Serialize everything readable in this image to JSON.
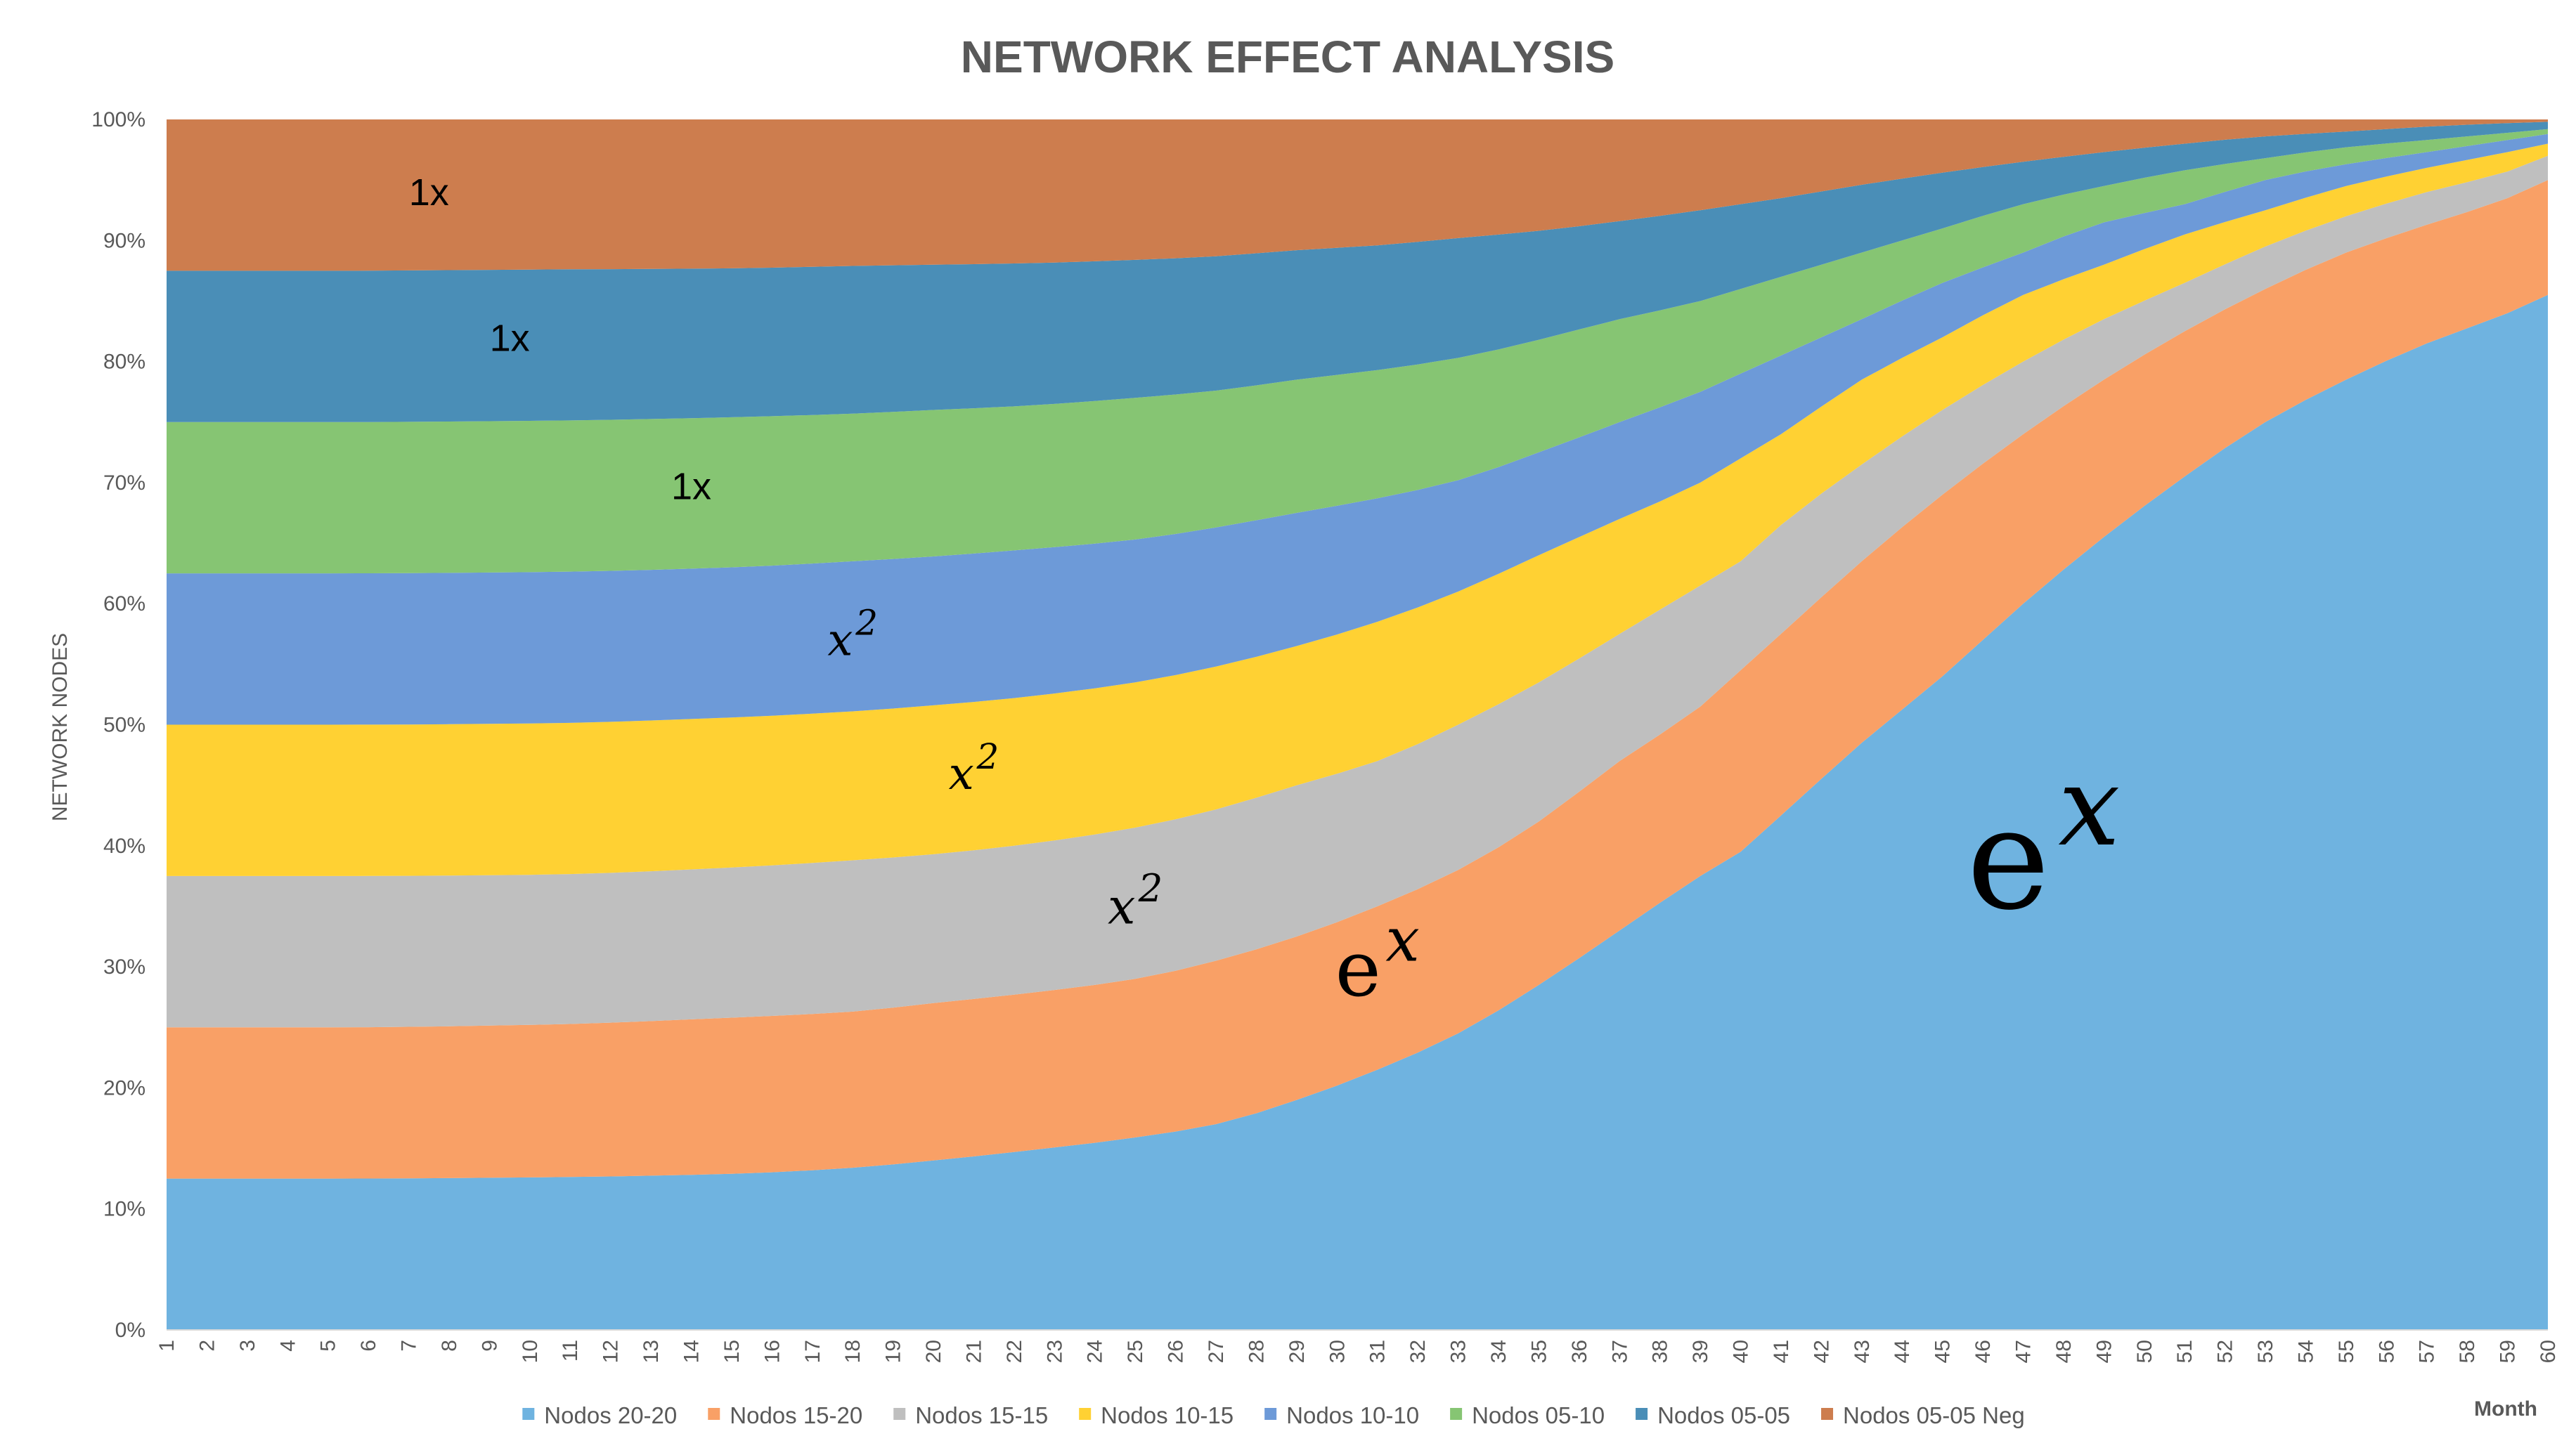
{
  "chart_data": {
    "type": "area",
    "stacked": "percent",
    "title": "NETWORK EFFECT ANALYSIS",
    "xlabel": "Month",
    "ylabel": "NETWORK NODES",
    "ylim": [
      0,
      100
    ],
    "y_ticks": [
      "0%",
      "10%",
      "20%",
      "30%",
      "40%",
      "50%",
      "60%",
      "70%",
      "80%",
      "90%",
      "100%"
    ],
    "x": [
      1,
      2,
      3,
      4,
      5,
      6,
      7,
      8,
      9,
      10,
      11,
      12,
      13,
      14,
      15,
      16,
      17,
      18,
      19,
      20,
      21,
      22,
      23,
      24,
      25,
      26,
      27,
      28,
      29,
      30,
      31,
      32,
      33,
      34,
      35,
      36,
      37,
      38,
      39,
      40,
      41,
      42,
      43,
      44,
      45,
      46,
      47,
      48,
      49,
      50,
      51,
      52,
      53,
      54,
      55,
      56,
      57,
      58,
      59,
      60
    ],
    "legend_position": "bottom",
    "cumulative_top_boundaries": [
      {
        "name": "Nodos 20-20",
        "color": "#6fb3e0",
        "points": [
          [
            1,
            12.5
          ],
          [
            5,
            12.5
          ],
          [
            10,
            12.6
          ],
          [
            15,
            12.9
          ],
          [
            18,
            13.4
          ],
          [
            20,
            14.0
          ],
          [
            22,
            14.7
          ],
          [
            25,
            15.9
          ],
          [
            27,
            17.0
          ],
          [
            29,
            19.0
          ],
          [
            31,
            21.5
          ],
          [
            33,
            24.5
          ],
          [
            35,
            28.5
          ],
          [
            37,
            33.0
          ],
          [
            39,
            37.5
          ],
          [
            40,
            39.5
          ],
          [
            41,
            42.5
          ],
          [
            43,
            48.5
          ],
          [
            45,
            54.0
          ],
          [
            47,
            60.0
          ],
          [
            49,
            65.5
          ],
          [
            51,
            70.5
          ],
          [
            53,
            75.0
          ],
          [
            55,
            78.5
          ],
          [
            57,
            81.5
          ],
          [
            59,
            84.0
          ],
          [
            60,
            85.5
          ]
        ]
      },
      {
        "name": "Nodos 15-20",
        "color": "#f9a066",
        "points": [
          [
            1,
            25.0
          ],
          [
            5,
            25.0
          ],
          [
            10,
            25.2
          ],
          [
            15,
            25.8
          ],
          [
            18,
            26.3
          ],
          [
            20,
            27.0
          ],
          [
            22,
            27.7
          ],
          [
            25,
            29.0
          ],
          [
            27,
            30.5
          ],
          [
            29,
            32.5
          ],
          [
            31,
            35.0
          ],
          [
            33,
            38.0
          ],
          [
            35,
            42.0
          ],
          [
            37,
            47.0
          ],
          [
            39,
            51.5
          ],
          [
            40,
            54.5
          ],
          [
            41,
            57.5
          ],
          [
            43,
            63.5
          ],
          [
            45,
            69.0
          ],
          [
            47,
            74.0
          ],
          [
            49,
            78.5
          ],
          [
            51,
            82.5
          ],
          [
            53,
            86.0
          ],
          [
            55,
            89.0
          ],
          [
            57,
            91.3
          ],
          [
            59,
            93.5
          ],
          [
            60,
            95.0
          ]
        ]
      },
      {
        "name": "Nodos 15-15",
        "color": "#bfbfbf",
        "points": [
          [
            1,
            37.5
          ],
          [
            5,
            37.5
          ],
          [
            10,
            37.6
          ],
          [
            15,
            38.2
          ],
          [
            18,
            38.8
          ],
          [
            20,
            39.3
          ],
          [
            22,
            40.0
          ],
          [
            25,
            41.5
          ],
          [
            27,
            43.0
          ],
          [
            29,
            45.0
          ],
          [
            31,
            47.0
          ],
          [
            33,
            50.0
          ],
          [
            35,
            53.5
          ],
          [
            37,
            57.5
          ],
          [
            39,
            61.5
          ],
          [
            40,
            63.5
          ],
          [
            41,
            66.5
          ],
          [
            43,
            71.5
          ],
          [
            45,
            76.0
          ],
          [
            47,
            80.0
          ],
          [
            49,
            83.5
          ],
          [
            51,
            86.5
          ],
          [
            53,
            89.5
          ],
          [
            55,
            92.0
          ],
          [
            57,
            94.0
          ],
          [
            59,
            95.7
          ],
          [
            60,
            97.0
          ]
        ]
      },
      {
        "name": "Nodos 10-15",
        "color": "#ffd133",
        "points": [
          [
            1,
            50.0
          ],
          [
            5,
            50.0
          ],
          [
            10,
            50.1
          ],
          [
            15,
            50.6
          ],
          [
            18,
            51.1
          ],
          [
            20,
            51.6
          ],
          [
            22,
            52.2
          ],
          [
            25,
            53.5
          ],
          [
            27,
            54.8
          ],
          [
            29,
            56.5
          ],
          [
            31,
            58.5
          ],
          [
            33,
            61.0
          ],
          [
            35,
            64.0
          ],
          [
            37,
            67.0
          ],
          [
            39,
            70.0
          ],
          [
            40,
            72.0
          ],
          [
            41,
            74.0
          ],
          [
            43,
            78.5
          ],
          [
            45,
            82.0
          ],
          [
            47,
            85.5
          ],
          [
            49,
            88.0
          ],
          [
            51,
            90.5
          ],
          [
            53,
            92.5
          ],
          [
            55,
            94.5
          ],
          [
            57,
            96.0
          ],
          [
            59,
            97.3
          ],
          [
            60,
            98.0
          ]
        ]
      },
      {
        "name": "Nodos 10-10",
        "color": "#6d9ad8",
        "points": [
          [
            1,
            62.5
          ],
          [
            5,
            62.5
          ],
          [
            10,
            62.6
          ],
          [
            15,
            63.0
          ],
          [
            18,
            63.5
          ],
          [
            20,
            63.9
          ],
          [
            22,
            64.4
          ],
          [
            25,
            65.3
          ],
          [
            27,
            66.3
          ],
          [
            29,
            67.5
          ],
          [
            31,
            68.7
          ],
          [
            33,
            70.2
          ],
          [
            35,
            72.5
          ],
          [
            37,
            75.0
          ],
          [
            39,
            77.5
          ],
          [
            40,
            79.0
          ],
          [
            41,
            80.5
          ],
          [
            43,
            83.5
          ],
          [
            45,
            86.5
          ],
          [
            47,
            89.0
          ],
          [
            49,
            91.5
          ],
          [
            51,
            93.0
          ],
          [
            53,
            95.0
          ],
          [
            55,
            96.3
          ],
          [
            57,
            97.3
          ],
          [
            59,
            98.3
          ],
          [
            60,
            98.8
          ]
        ]
      },
      {
        "name": "Nodos 05-10",
        "color": "#86c573",
        "points": [
          [
            1,
            75.0
          ],
          [
            5,
            75.0
          ],
          [
            10,
            75.1
          ],
          [
            15,
            75.4
          ],
          [
            18,
            75.7
          ],
          [
            20,
            76.0
          ],
          [
            22,
            76.3
          ],
          [
            25,
            77.0
          ],
          [
            27,
            77.6
          ],
          [
            29,
            78.5
          ],
          [
            31,
            79.3
          ],
          [
            33,
            80.3
          ],
          [
            35,
            81.8
          ],
          [
            37,
            83.5
          ],
          [
            39,
            85.0
          ],
          [
            40,
            86.0
          ],
          [
            41,
            87.0
          ],
          [
            43,
            89.0
          ],
          [
            45,
            91.0
          ],
          [
            47,
            93.0
          ],
          [
            49,
            94.5
          ],
          [
            51,
            95.8
          ],
          [
            53,
            96.8
          ],
          [
            55,
            97.7
          ],
          [
            57,
            98.3
          ],
          [
            59,
            98.9
          ],
          [
            60,
            99.2
          ]
        ]
      },
      {
        "name": "Nodos 05-05",
        "color": "#4a8eb7",
        "points": [
          [
            1,
            87.5
          ],
          [
            5,
            87.5
          ],
          [
            10,
            87.6
          ],
          [
            15,
            87.7
          ],
          [
            18,
            87.9
          ],
          [
            20,
            88.0
          ],
          [
            22,
            88.1
          ],
          [
            25,
            88.4
          ],
          [
            27,
            88.7
          ],
          [
            29,
            89.2
          ],
          [
            31,
            89.6
          ],
          [
            33,
            90.2
          ],
          [
            35,
            90.8
          ],
          [
            37,
            91.6
          ],
          [
            39,
            92.5
          ],
          [
            40,
            93.0
          ],
          [
            41,
            93.5
          ],
          [
            43,
            94.6
          ],
          [
            45,
            95.6
          ],
          [
            47,
            96.5
          ],
          [
            49,
            97.3
          ],
          [
            51,
            98.0
          ],
          [
            53,
            98.6
          ],
          [
            55,
            99.0
          ],
          [
            57,
            99.4
          ],
          [
            59,
            99.7
          ],
          [
            60,
            99.8
          ]
        ]
      },
      {
        "name": "Nodos 05-05 Neg",
        "color": "#cd7d4e",
        "points": [
          [
            1,
            100
          ],
          [
            60,
            100
          ]
        ]
      }
    ],
    "annotations": [
      {
        "base": "1x",
        "sup": "",
        "style": "plain",
        "layer": "Nodos 05-05 Neg"
      },
      {
        "base": "1x",
        "sup": "",
        "style": "plain",
        "layer": "Nodos 05-05"
      },
      {
        "base": "1x",
        "sup": "",
        "style": "plain",
        "layer": "Nodos 05-10"
      },
      {
        "base": "x",
        "sup": "2",
        "style": "var",
        "layer": "Nodos 10-10"
      },
      {
        "base": "x",
        "sup": "2",
        "style": "var",
        "layer": "Nodos 10-15"
      },
      {
        "base": "x",
        "sup": "2",
        "style": "var",
        "layer": "Nodos 15-15"
      },
      {
        "base": "e",
        "sup": "x",
        "style": "exp",
        "layer": "Nodos 15-20"
      },
      {
        "base": "e",
        "sup": "x",
        "style": "exp",
        "layer": "Nodos 20-20"
      }
    ]
  }
}
